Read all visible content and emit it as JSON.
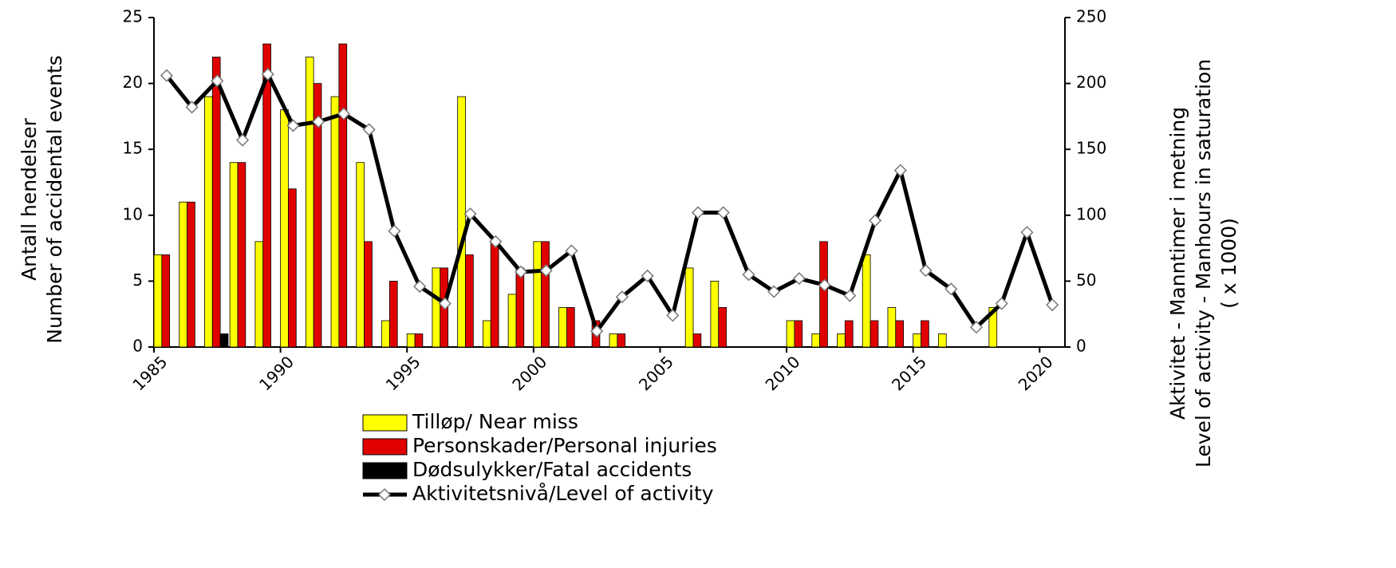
{
  "chart_data": {
    "type": "bar",
    "categories": [
      1985,
      null,
      null,
      null,
      null,
      1990,
      null,
      null,
      null,
      null,
      1995,
      null,
      null,
      null,
      null,
      2000,
      null,
      null,
      null,
      null,
      2005,
      null,
      null,
      null,
      null,
      2010,
      null,
      null,
      null,
      null,
      2015,
      null,
      null,
      null,
      null,
      2020
    ],
    "series": [
      {
        "name": "Tilløp/ Near miss",
        "color": "#ffff00",
        "type": "bar",
        "values": [
          7,
          11,
          19,
          14,
          8,
          18,
          22,
          19,
          14,
          2,
          1,
          6,
          19,
          2,
          4,
          8,
          3,
          0,
          1,
          0,
          0,
          6,
          5,
          0,
          0,
          2,
          1,
          1,
          7,
          3,
          1,
          1,
          0,
          3,
          0,
          0
        ]
      },
      {
        "name": "Personskader/Personal injuries",
        "color": "#e00000",
        "type": "bar",
        "values": [
          7,
          11,
          22,
          14,
          23,
          12,
          20,
          23,
          8,
          5,
          1,
          6,
          7,
          8,
          6,
          8,
          3,
          2,
          1,
          0,
          0,
          1,
          3,
          0,
          0,
          2,
          8,
          2,
          2,
          2,
          2,
          0,
          0,
          0,
          0,
          0
        ]
      },
      {
        "name": "Dødsulykker/Fatal accidents",
        "color": "#000000",
        "type": "bar",
        "values": [
          0,
          0,
          1,
          0,
          0,
          0,
          0,
          0,
          0,
          0,
          0,
          0,
          0,
          0,
          0,
          0,
          0,
          0,
          0,
          0,
          0,
          0,
          0,
          0,
          0,
          0,
          0,
          0,
          0,
          0,
          0,
          0,
          0,
          0,
          0,
          0
        ]
      },
      {
        "name": "Aktivitetsnivå/Level of activity",
        "color": "#000000",
        "type": "line",
        "axis": "y2",
        "values": [
          206,
          182,
          202,
          157,
          207,
          168,
          171,
          177,
          165,
          88,
          46,
          33,
          101,
          80,
          57,
          58,
          73,
          12,
          38,
          54,
          24,
          102,
          102,
          55,
          42,
          52,
          47,
          39,
          96,
          134,
          58,
          44,
          15,
          33,
          87,
          32
        ]
      }
    ],
    "ylabel": [
      "Antall hendelser",
      "Number of accidental events"
    ],
    "y2label": [
      "Aktivitet - Manntimer i metning",
      "Level of activity - Manhours in saturation",
      "( x 1000)"
    ],
    "ylim": [
      0,
      25
    ],
    "yticks": [
      0,
      5,
      10,
      15,
      20,
      25
    ],
    "y2lim": [
      0,
      250
    ],
    "y2ticks": [
      0,
      50,
      100,
      150,
      200,
      250
    ],
    "grid": false,
    "legend": "bottom"
  }
}
